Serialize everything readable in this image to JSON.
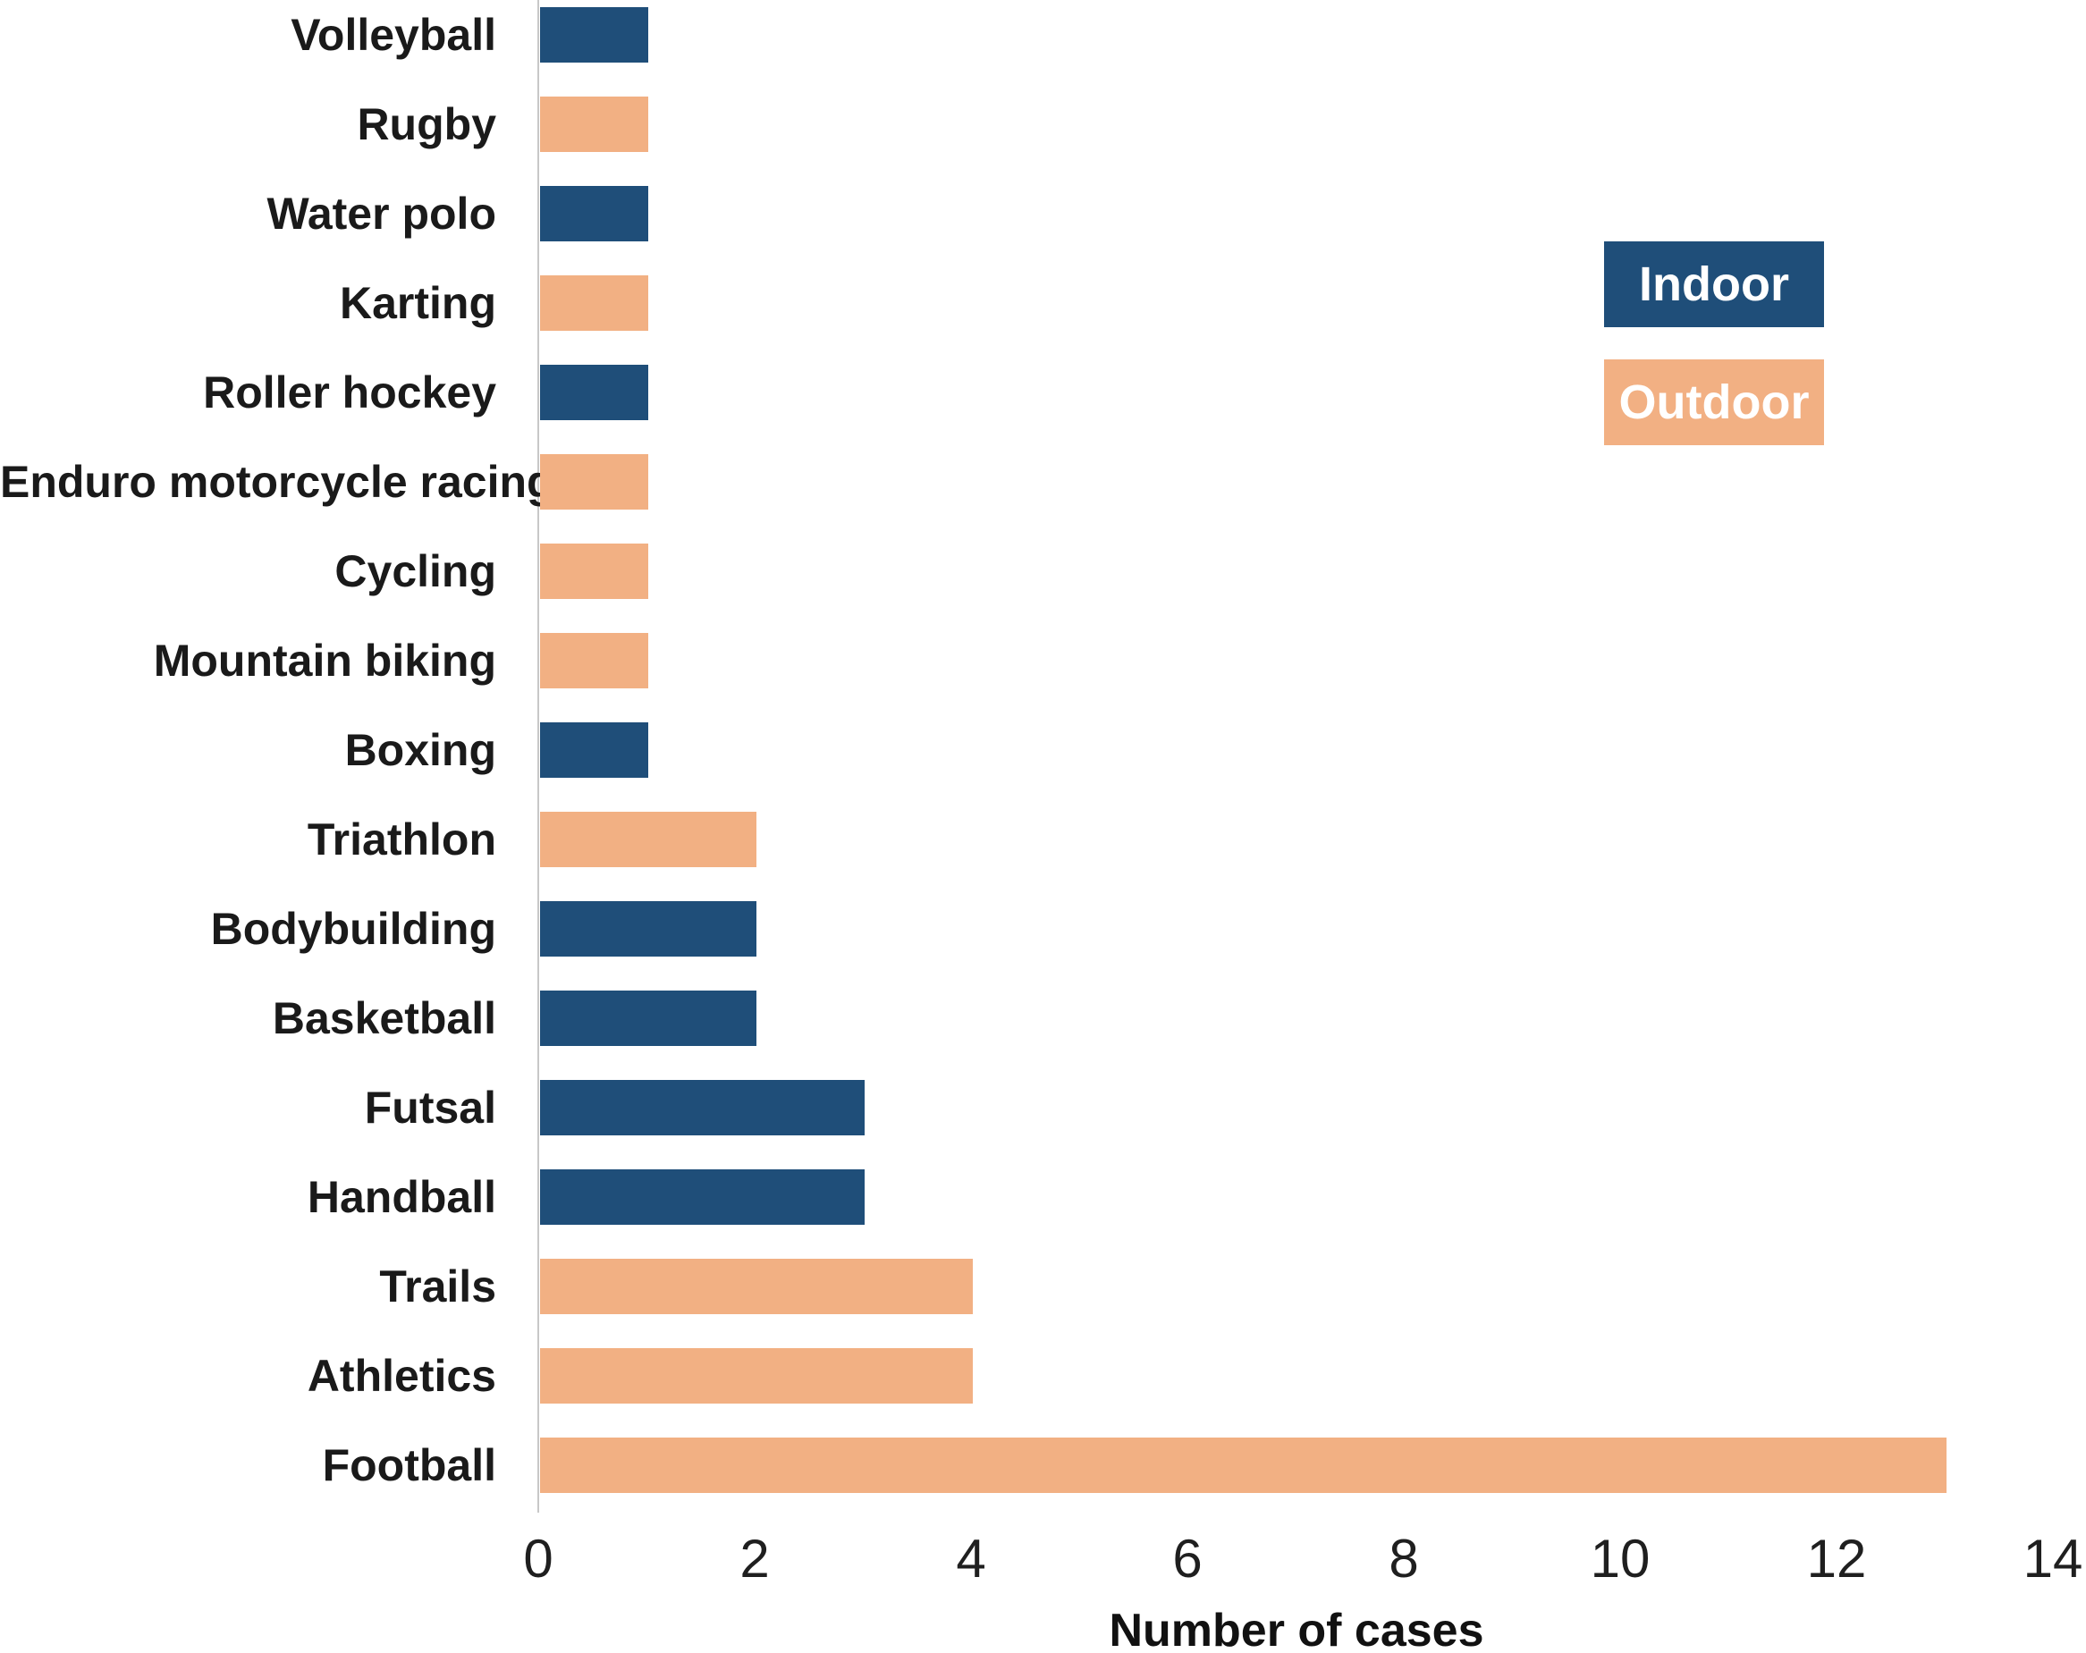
{
  "chart_data": {
    "type": "bar",
    "orientation": "horizontal",
    "title": "",
    "xlabel": "Number of cases",
    "ylabel": "",
    "xlim": [
      0,
      14
    ],
    "xticks": [
      0,
      2,
      4,
      6,
      8,
      10,
      12,
      14
    ],
    "grid": false,
    "legend": {
      "position": "upper-right",
      "items": [
        {
          "label": "Indoor",
          "color": "#1F4E79"
        },
        {
          "label": "Outdoor",
          "color": "#F2B083"
        }
      ]
    },
    "bars": [
      {
        "category": "Volleyball",
        "value": 1,
        "group": "Indoor"
      },
      {
        "category": "Rugby",
        "value": 1,
        "group": "Outdoor"
      },
      {
        "category": "Water polo",
        "value": 1,
        "group": "Indoor"
      },
      {
        "category": "Karting",
        "value": 1,
        "group": "Outdoor"
      },
      {
        "category": "Roller hockey",
        "value": 1,
        "group": "Indoor"
      },
      {
        "category": "Enduro motorcycle racing",
        "value": 1,
        "group": "Outdoor"
      },
      {
        "category": "Cycling",
        "value": 1,
        "group": "Outdoor"
      },
      {
        "category": "Mountain biking",
        "value": 1,
        "group": "Outdoor"
      },
      {
        "category": "Boxing",
        "value": 1,
        "group": "Indoor"
      },
      {
        "category": "Triathlon",
        "value": 2,
        "group": "Outdoor"
      },
      {
        "category": "Bodybuilding",
        "value": 2,
        "group": "Indoor"
      },
      {
        "category": "Basketball",
        "value": 2,
        "group": "Indoor"
      },
      {
        "category": "Futsal",
        "value": 3,
        "group": "Indoor"
      },
      {
        "category": "Handball",
        "value": 3,
        "group": "Indoor"
      },
      {
        "category": "Trails",
        "value": 4,
        "group": "Outdoor"
      },
      {
        "category": "Athletics",
        "value": 4,
        "group": "Outdoor"
      },
      {
        "category": "Football",
        "value": 13,
        "group": "Outdoor"
      }
    ]
  },
  "colors": {
    "indoor": "#1F4E79",
    "outdoor": "#F2B083",
    "axis_line": "#C8C8C8",
    "text": "#1A1A1A",
    "background": "#FFFFFF"
  }
}
